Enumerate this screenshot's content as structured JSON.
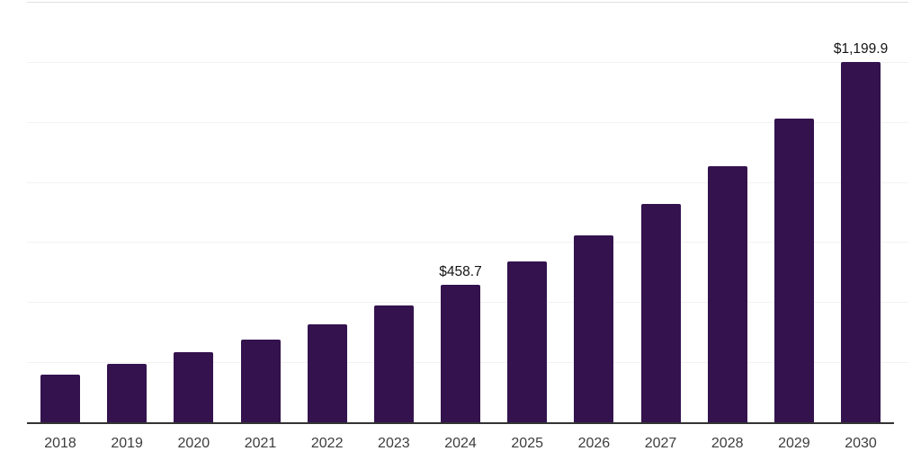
{
  "chart_data": {
    "type": "bar",
    "title": "",
    "xlabel": "",
    "ylabel": "",
    "categories": [
      "2018",
      "2019",
      "2020",
      "2021",
      "2022",
      "2023",
      "2024",
      "2025",
      "2026",
      "2027",
      "2028",
      "2029",
      "2030"
    ],
    "values": [
      160,
      194,
      232,
      275,
      327,
      388,
      458.7,
      535,
      622,
      726,
      852,
      1010,
      1199.9
    ],
    "value_labels": {
      "2024": "$458.7",
      "2030": "$1,199.9"
    },
    "ylim": [
      0,
      1400
    ],
    "gridline_step": 200,
    "grid": true,
    "legend": false,
    "y_tick_labels_visible": false,
    "bar_color": "#33124E",
    "axis_line_color": "#333333",
    "top_border_color": "#e0e0e0",
    "gridline_color": "#f2f2f2",
    "tick_label_color": "#3d3d3d",
    "value_label_color": "#141414",
    "background_color": "#ffffff"
  }
}
